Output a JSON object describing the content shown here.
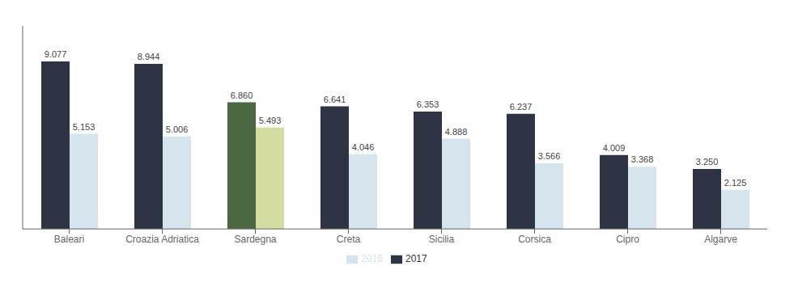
{
  "chart_data": {
    "type": "bar",
    "categories": [
      "Baleari",
      "Croazia Adriatica",
      "Sardegna",
      "Creta",
      "Sicilia",
      "Corsica",
      "Cipro",
      "Algarve"
    ],
    "ylim": [
      0,
      11.0
    ],
    "grid": false,
    "legend": "bottom",
    "data_labels": true,
    "tick_labels": "x",
    "series": [
      {
        "name": "2017",
        "color": "#2E3443",
        "colors": [
          "#2E3443",
          "#2E3443",
          "#4A6741",
          "#2E3443",
          "#2E3443",
          "#2E3443",
          "#2E3443",
          "#2E3443"
        ],
        "values": [
          9.077,
          8.944,
          6.86,
          6.641,
          6.353,
          6.237,
          4.009,
          3.25
        ],
        "value_labels": [
          "9.077",
          "8.944",
          "6.860",
          "6.641",
          "6.353",
          "6.237",
          "4.009",
          "3.250"
        ]
      },
      {
        "name": "2016",
        "color": "#D6E4EE",
        "colors": [
          "#D6E4EE",
          "#D6E4EE",
          "#D4DCA0",
          "#D6E4EE",
          "#D6E4EE",
          "#D6E4EE",
          "#D6E4EE",
          "#D6E4EE"
        ],
        "values": [
          5.153,
          5.006,
          5.493,
          4.046,
          4.888,
          3.566,
          3.368,
          2.125
        ],
        "value_labels": [
          "5.153",
          "5.006",
          "5.493",
          "4.046",
          "4.888",
          "3.566",
          "3.368",
          "2.125"
        ]
      }
    ]
  }
}
